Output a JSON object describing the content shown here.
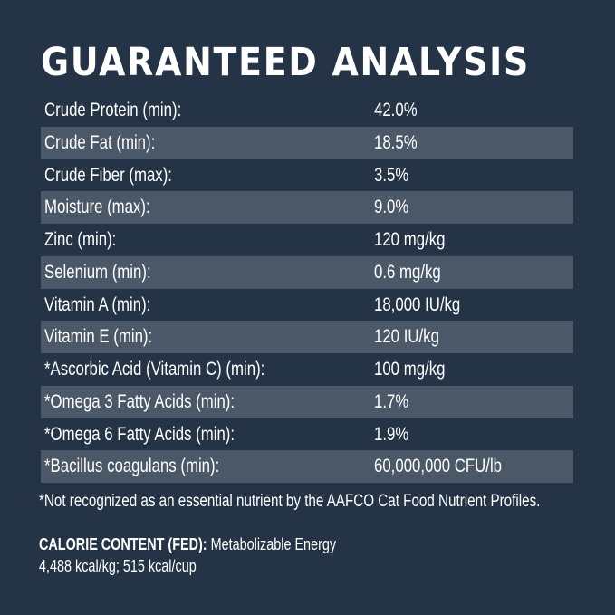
{
  "title": "GUARANTEED ANALYSIS",
  "rows": [
    {
      "label": "Crude Protein (min):",
      "value": "42.0%"
    },
    {
      "label": "Crude Fat (min):",
      "value": "18.5%"
    },
    {
      "label": "Crude Fiber (max):",
      "value": "3.5%"
    },
    {
      "label": "Moisture (max):",
      "value": "9.0%"
    },
    {
      "label": "Zinc (min):",
      "value": "120 mg/kg"
    },
    {
      "label": "Selenium (min):",
      "value": "0.6 mg/kg"
    },
    {
      "label": "Vitamin A (min):",
      "value": "18,000 IU/kg"
    },
    {
      "label": "Vitamin E (min):",
      "value": "120 IU/kg"
    },
    {
      "label": "*Ascorbic Acid (Vitamin C) (min):",
      "value": "100 mg/kg"
    },
    {
      "label": "*Omega 3 Fatty Acids (min):",
      "value": "1.7%"
    },
    {
      "label": "*Omega 6 Fatty Acids (min):",
      "value": "1.9%"
    },
    {
      "label": "*Bacillus coagulans (min):",
      "value": "60,000,000 CFU/lb"
    }
  ],
  "footnote": "*Not recognized as an essential nutrient by the AAFCO Cat Food Nutrient Profiles.",
  "calorie": {
    "heading": "CALORIE CONTENT (FED):",
    "label": "Metabolizable Energy",
    "values": "4,488 kcal/kg; 515 kcal/cup"
  },
  "colors": {
    "background": "#243446",
    "stripe": "#4a5868",
    "text": "#ffffff"
  }
}
